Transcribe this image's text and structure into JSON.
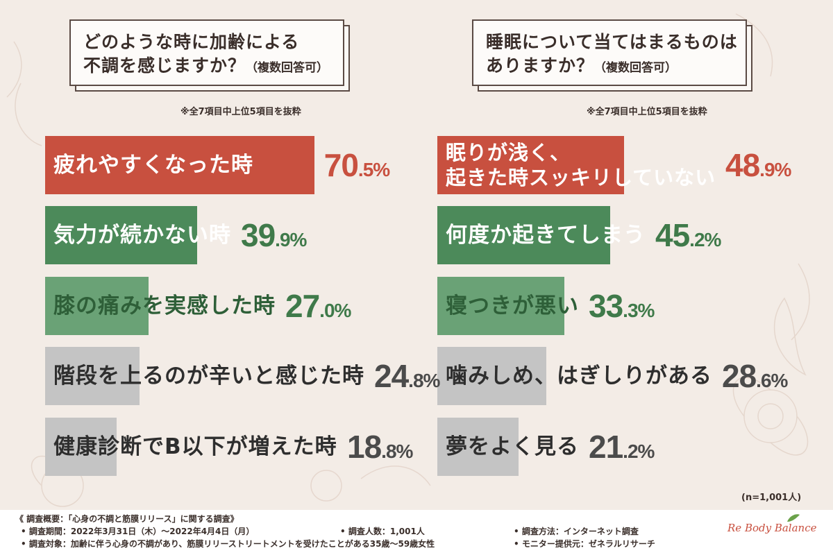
{
  "left": {
    "question_line1": "どのような時に加齢による",
    "question_line2": "不調を感じますか？",
    "question_suffix": "（複数回答可）",
    "note": "※全7項目中上位5項目を抜粋"
  },
  "right": {
    "question_line1": "睡眠について当てはまるものは",
    "question_line2": "ありますか？",
    "question_suffix": "（複数回答可）",
    "note": "※全7項目中上位5項目を抜粋"
  },
  "chart_data": [
    {
      "type": "bar",
      "title": "どのような時に加齢による不調を感じますか？（複数回答可）",
      "categories": [
        "疲れやすくなった時",
        "気力が続かない時",
        "膝の痛みを実感した時",
        "階段を上るのが辛いと感じた時",
        "健康診断でB以下が増えた時"
      ],
      "values": [
        70.5,
        39.9,
        27.0,
        24.8,
        18.8
      ],
      "value_labels": [
        {
          "int": "70",
          "dec": ".5%"
        },
        {
          "int": "39",
          "dec": ".9%"
        },
        {
          "int": "27",
          "dec": ".0%"
        },
        {
          "int": "24",
          "dec": ".8%"
        },
        {
          "int": "18",
          "dec": ".8%"
        }
      ],
      "unit": "%",
      "orientation": "horizontal",
      "colors": [
        "#c8503f",
        "#4c8a5a",
        "#6aa276",
        "#c4c4c4",
        "#c4c4c4"
      ]
    },
    {
      "type": "bar",
      "title": "睡眠について当てはまるものはありますか？（複数回答可）",
      "categories": [
        "眠りが浅く、起きた時スッキリしていない",
        "何度か起きてしまう",
        "寝つきが悪い",
        "噛みしめ、はぎしりがある",
        "夢をよく見る"
      ],
      "label_lines": [
        [
          "眠りが浅く、",
          "起きた時スッキリしていない"
        ],
        [
          "何度か起きてしまう"
        ],
        [
          "寝つきが悪い"
        ],
        [
          "噛みしめ、はぎしりがある"
        ],
        [
          "夢をよく見る"
        ]
      ],
      "values": [
        48.9,
        45.2,
        33.3,
        28.6,
        21.2
      ],
      "value_labels": [
        {
          "int": "48",
          "dec": ".9%"
        },
        {
          "int": "45",
          "dec": ".2%"
        },
        {
          "int": "33",
          "dec": ".3%"
        },
        {
          "int": "28",
          "dec": ".6%"
        },
        {
          "int": "21",
          "dec": ".2%"
        }
      ],
      "unit": "%",
      "orientation": "horizontal",
      "colors": [
        "#c8503f",
        "#4c8a5a",
        "#6aa276",
        "#c4c4c4",
        "#c4c4c4"
      ]
    }
  ],
  "sample_note": "(n=1,001人)",
  "footer": {
    "overview": "《 調査概要：「心身の不調と筋膜リリース」に関する調査》",
    "period": "• 調査期間：2022年3月31日（木）～2022年4月4日（月）",
    "count": "• 調査人数：1,001人",
    "method": "• 調査方法：インターネット調査",
    "target": "• 調査対象：加齢に伴う心身の不調があり、筋膜リリーストリートメントを受けたことがある35歳～59歳女性",
    "provider": "• モニター提供元：ゼネラルリサーチ"
  },
  "logo_text": "Re Body Balance"
}
